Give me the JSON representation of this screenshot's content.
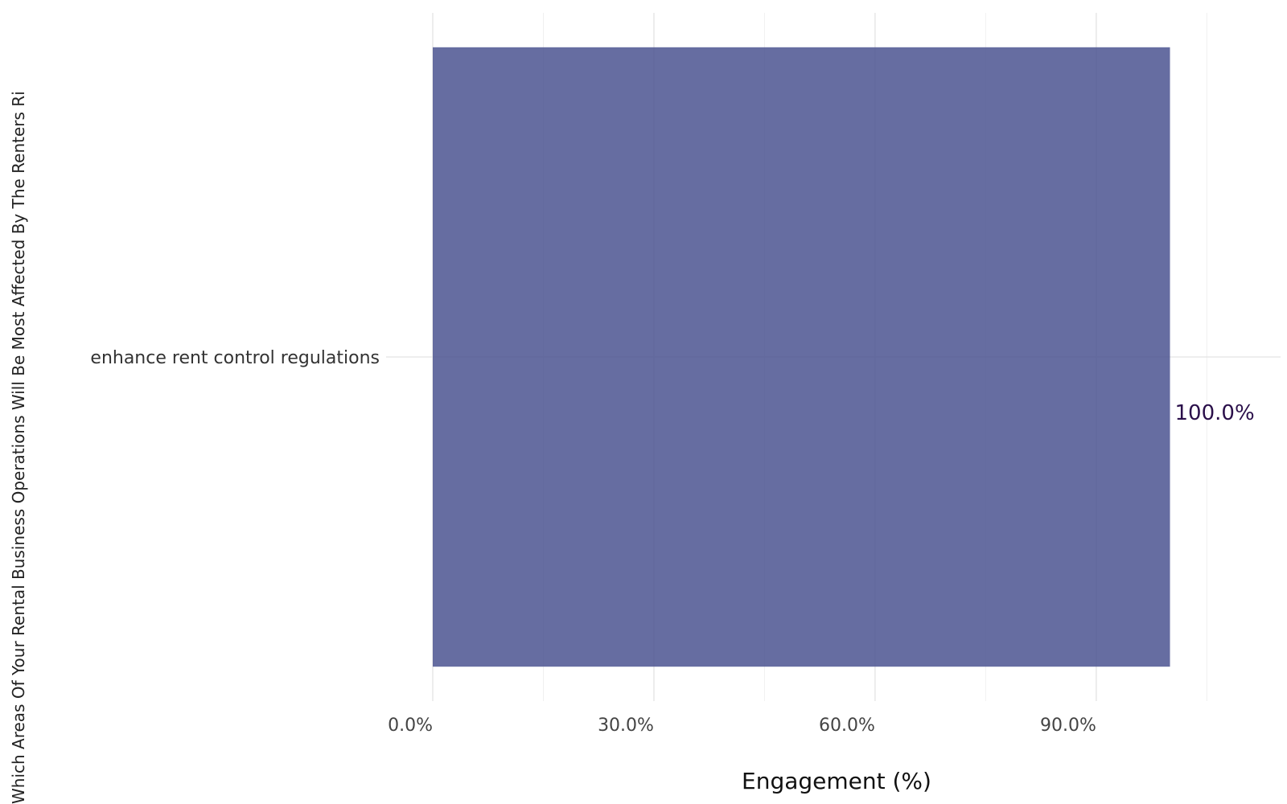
{
  "chart_data": {
    "type": "bar",
    "orientation": "horizontal",
    "title": "",
    "xlabel": "Engagement (%)",
    "ylabel": "Which Areas Of Your Rental Business Operations Will Be Most Affected By The Renters Ri",
    "categories": [
      "enhance rent control regulations"
    ],
    "values": [
      100.0
    ],
    "data_labels": [
      "100.0%"
    ],
    "xlim": [
      0,
      115
    ],
    "xticks": [
      0,
      30,
      60,
      90
    ],
    "xtick_labels": [
      "0.0%",
      "30.0%",
      "60.0%",
      "90.0%"
    ],
    "grid": true,
    "legend": "none",
    "bar_color": "#4b5391",
    "label_color": "#2a0f4a"
  }
}
